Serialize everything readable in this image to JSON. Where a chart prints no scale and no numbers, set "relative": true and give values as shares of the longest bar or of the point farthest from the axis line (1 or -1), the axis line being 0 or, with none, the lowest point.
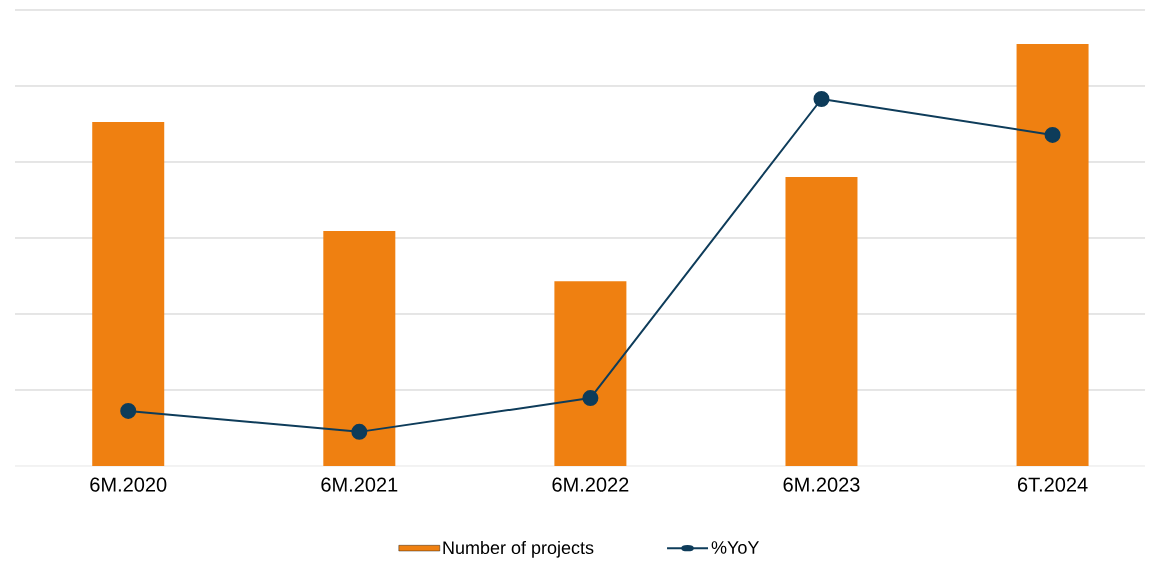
{
  "chart_data": {
    "type": "bar",
    "relative": true,
    "grid": "y",
    "legend": "bottom",
    "categories": [
      "6M.2020",
      "6M.2021",
      "6M.2022",
      "6M.2023",
      "6T.2024"
    ],
    "series": [
      {
        "name": "Number of projects",
        "color": "#ef8011",
        "values": [
          0.815,
          0.557,
          0.438,
          0.685,
          1
        ]
      },
      {
        "name": "%YoY",
        "type": "line",
        "axis": "y2",
        "marker": "circle",
        "line_style": "solid",
        "color": "#0e3c5a",
        "values": [
          0.15,
          0.093,
          0.185,
          1,
          0.902
        ]
      }
    ]
  }
}
